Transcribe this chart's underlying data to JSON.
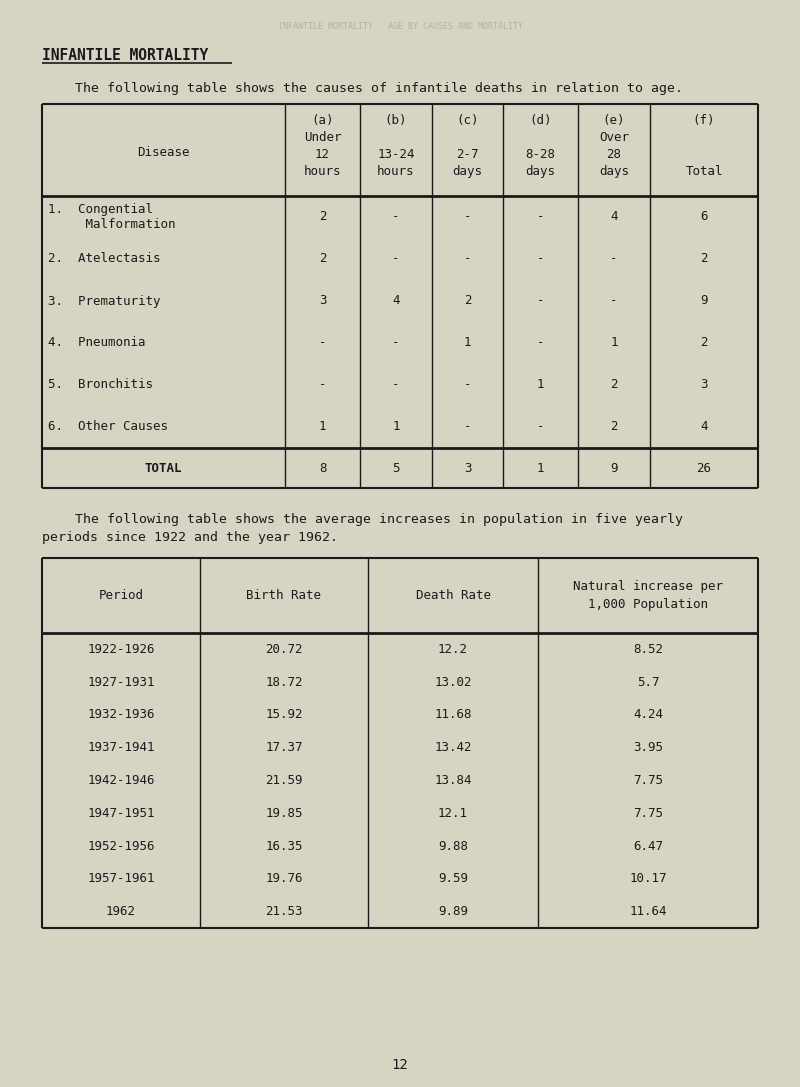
{
  "bg_color": "#d8d4c4",
  "text_color": "#1a1a1a",
  "page_title": "INFANTILE MORTALITY",
  "intro1": "The following table shows the causes of infantile deaths in relation to age.",
  "table1": {
    "col_headers_lines": [
      [
        "(a)",
        "Under",
        "12",
        "hours"
      ],
      [
        "(b)",
        "",
        "13-24",
        "hours"
      ],
      [
        "(c)",
        "",
        "2-7",
        "days"
      ],
      [
        "(d)",
        "",
        "8-28",
        "days"
      ],
      [
        "(e)",
        "Over",
        "28",
        "days"
      ],
      [
        "(f)",
        "",
        "",
        "Total"
      ]
    ],
    "row_header": "Disease",
    "rows": [
      {
        "label": [
          "1.  Congential",
          "     Malformation"
        ],
        "values": [
          "2",
          "-",
          "-",
          "-",
          "4",
          "6"
        ]
      },
      {
        "label": [
          "2.  Atelectasis"
        ],
        "values": [
          "2",
          "-",
          "-",
          "-",
          "-",
          "2"
        ]
      },
      {
        "label": [
          "3.  Prematurity"
        ],
        "values": [
          "3",
          "4",
          "2",
          "-",
          "-",
          "9"
        ]
      },
      {
        "label": [
          "4.  Pneumonia"
        ],
        "values": [
          "-",
          "-",
          "1",
          "-",
          "1",
          "2"
        ]
      },
      {
        "label": [
          "5.  Bronchitis"
        ],
        "values": [
          "-",
          "-",
          "-",
          "1",
          "2",
          "3"
        ]
      },
      {
        "label": [
          "6.  Other Causes"
        ],
        "values": [
          "1",
          "1",
          "-",
          "-",
          "2",
          "4"
        ]
      }
    ],
    "total_row": {
      "label": "TOTAL",
      "values": [
        "8",
        "5",
        "3",
        "1",
        "9",
        "26"
      ]
    }
  },
  "intro2_line1": "The following table shows the average increases in population in five yearly",
  "intro2_line2": "periods since 1922 and the year 1962.",
  "table2": {
    "col_headers": [
      "Period",
      "Birth Rate",
      "Death Rate",
      "Natural increase per\n1,000 Population"
    ],
    "rows": [
      [
        "1922-1926",
        "20.72",
        "12.2",
        "8.52"
      ],
      [
        "1927-1931",
        "18.72",
        "13.02",
        "5.7"
      ],
      [
        "1932-1936",
        "15.92",
        "11.68",
        "4.24"
      ],
      [
        "1937-1941",
        "17.37",
        "13.42",
        "3.95"
      ],
      [
        "1942-1946",
        "21.59",
        "13.84",
        "7.75"
      ],
      [
        "1947-1951",
        "19.85",
        "12.1",
        "7.75"
      ],
      [
        "1952-1956",
        "16.35",
        "9.88",
        "6.47"
      ],
      [
        "1957-1961",
        "19.76",
        "9.59",
        "10.17"
      ],
      [
        "1962",
        "21.53",
        "9.89",
        "11.64"
      ]
    ]
  },
  "page_number": "12",
  "watermark": "INFANTILE MORTALITY   AGE BY CAUSES AND MORTALITY"
}
